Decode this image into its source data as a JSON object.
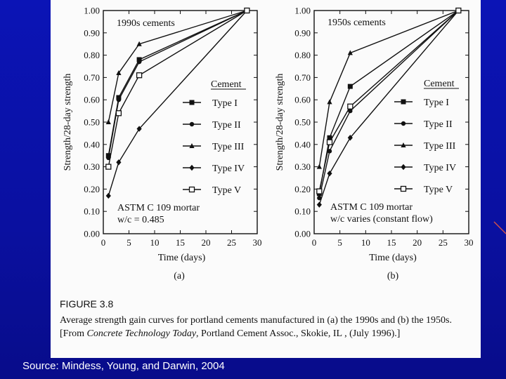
{
  "source_note": "Source: Mindess, Young, and Darwin, 2004",
  "figure": {
    "number": "FIGURE 3.8",
    "caption_parts": {
      "p1": "Average strength gain curves for portland cements manufactured in (a) the 1990s and (b) the 1950s. [From ",
      "em": "Concrete Technology Today",
      "p2": ", Portland Cement Assoc., Skokie, IL , (July 1996).]"
    }
  },
  "chart_data": [
    {
      "type": "line",
      "panel_label": "(a)",
      "title": "1990s cements",
      "xlabel": "Time (days)",
      "ylabel": "Strength/28-day strength",
      "xlim": [
        0,
        30
      ],
      "ylim": [
        0.0,
        1.0
      ],
      "x_ticks": [
        "0",
        "5",
        "10",
        "15",
        "20",
        "25",
        "30"
      ],
      "y_ticks": [
        "0.00",
        "0.10",
        "0.20",
        "0.30",
        "0.40",
        "0.50",
        "0.60",
        "0.70",
        "0.80",
        "0.90",
        "1.00"
      ],
      "legend_title": "Cement",
      "notes": [
        "ASTM C 109 mortar",
        "w/c = 0.485"
      ],
      "series": [
        {
          "name": "Type I",
          "marker": "square",
          "x": [
            1,
            3,
            7,
            28
          ],
          "y": [
            0.35,
            0.61,
            0.78,
            1.0
          ]
        },
        {
          "name": "Type II",
          "marker": "circle",
          "x": [
            1,
            3,
            7,
            28
          ],
          "y": [
            0.34,
            0.6,
            0.77,
            1.0
          ]
        },
        {
          "name": "Type III",
          "marker": "triangle",
          "x": [
            1,
            3,
            7,
            28
          ],
          "y": [
            0.5,
            0.72,
            0.85,
            1.0
          ]
        },
        {
          "name": "Type IV",
          "marker": "diamond",
          "x": [
            1,
            3,
            7,
            28
          ],
          "y": [
            0.17,
            0.32,
            0.47,
            1.0
          ]
        },
        {
          "name": "Type V",
          "marker": "open-square",
          "x": [
            1,
            3,
            7,
            28
          ],
          "y": [
            0.3,
            0.54,
            0.71,
            1.0
          ]
        }
      ]
    },
    {
      "type": "line",
      "panel_label": "(b)",
      "title": "1950s cements",
      "xlabel": "Time (days)",
      "ylabel": "Strength/28-day strength",
      "xlim": [
        0,
        30
      ],
      "ylim": [
        0.0,
        1.0
      ],
      "x_ticks": [
        "0",
        "5",
        "10",
        "15",
        "20",
        "25",
        "30"
      ],
      "y_ticks": [
        "0.00",
        "0.10",
        "0.20",
        "0.30",
        "0.40",
        "0.50",
        "0.60",
        "0.70",
        "0.80",
        "0.90",
        "1.00"
      ],
      "legend_title": "Cement",
      "notes": [
        "ASTM C 109 mortar",
        "w/c varies (constant flow)"
      ],
      "series": [
        {
          "name": "Type I",
          "marker": "square",
          "x": [
            1,
            3,
            7,
            28
          ],
          "y": [
            0.18,
            0.43,
            0.66,
            1.0
          ]
        },
        {
          "name": "Type II",
          "marker": "circle",
          "x": [
            1,
            3,
            7,
            28
          ],
          "y": [
            0.16,
            0.37,
            0.55,
            1.0
          ]
        },
        {
          "name": "Type III",
          "marker": "triangle",
          "x": [
            1,
            3,
            7,
            28
          ],
          "y": [
            0.3,
            0.59,
            0.81,
            1.0
          ]
        },
        {
          "name": "Type IV",
          "marker": "diamond",
          "x": [
            1,
            3,
            7,
            28
          ],
          "y": [
            0.13,
            0.27,
            0.43,
            1.0
          ]
        },
        {
          "name": "Type V",
          "marker": "open-square",
          "x": [
            1,
            3,
            7,
            28
          ],
          "y": [
            0.19,
            0.41,
            0.57,
            1.0
          ]
        }
      ]
    }
  ]
}
